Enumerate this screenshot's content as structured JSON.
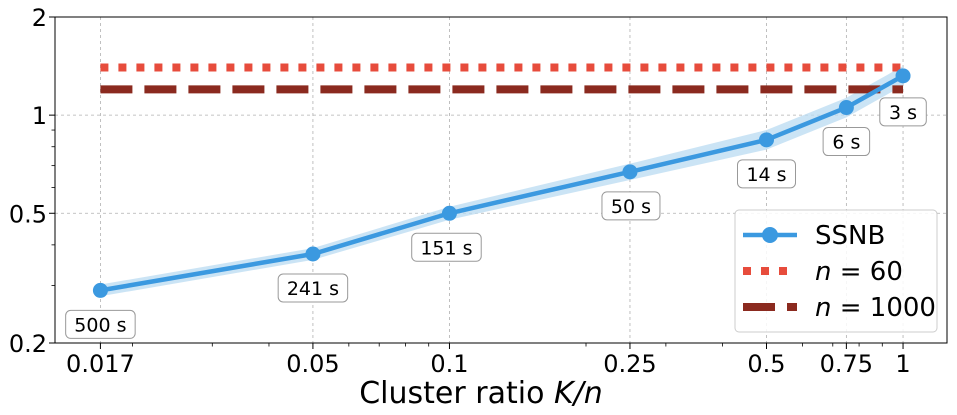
{
  "chart_data": {
    "type": "line",
    "xlabel_prefix": "Cluster ratio ",
    "xlabel_var": "K/n",
    "ylabel": "",
    "xscale": "log",
    "yscale": "log",
    "xlim": [
      0.0135,
      1.25
    ],
    "ylim": [
      0.2,
      2.0
    ],
    "grid": true,
    "legend_position": "lower-right",
    "x_ticks": [
      {
        "value": 0.017,
        "label": "0.017"
      },
      {
        "value": 0.05,
        "label": "0.05"
      },
      {
        "value": 0.1,
        "label": "0.1"
      },
      {
        "value": 0.25,
        "label": "0.25"
      },
      {
        "value": 0.5,
        "label": "0.5"
      },
      {
        "value": 0.75,
        "label": "0.75"
      },
      {
        "value": 1,
        "label": "1"
      }
    ],
    "y_ticks": [
      {
        "value": 0.2,
        "label": "0.2"
      },
      {
        "value": 0.5,
        "label": "0.5"
      },
      {
        "value": 1,
        "label": "1"
      },
      {
        "value": 2,
        "label": "2"
      }
    ],
    "series": [
      {
        "name": "SSNB",
        "style": "solid-markers",
        "color": "#3b99e0",
        "band_color": "#b9dbf2",
        "x": [
          0.017,
          0.05,
          0.1,
          0.25,
          0.5,
          0.75,
          1
        ],
        "y": [
          0.29,
          0.375,
          0.5,
          0.67,
          0.84,
          1.055,
          1.32
        ],
        "band_halfwidth": [
          0.018,
          0.018,
          0.02,
          0.025,
          0.03,
          0.03,
          0.03
        ],
        "time_labels": [
          "500 s",
          "241 s",
          "151 s",
          "50 s",
          "14 s",
          "6 s",
          "3 s"
        ]
      },
      {
        "name": "n = 60",
        "style": "dotted",
        "color": "#e74c3c",
        "x": [
          0.017,
          1
        ],
        "y": [
          1.4,
          1.4
        ]
      },
      {
        "name": "n = 1000",
        "style": "dashed",
        "color": "#8b2a1f",
        "x": [
          0.017,
          1
        ],
        "y": [
          1.2,
          1.2
        ]
      }
    ],
    "legend": [
      {
        "text": "SSNB"
      },
      {
        "prefix": "",
        "var": "n",
        "suffix": " = 60"
      },
      {
        "prefix": "",
        "var": "n",
        "suffix": " = 1000"
      }
    ]
  }
}
